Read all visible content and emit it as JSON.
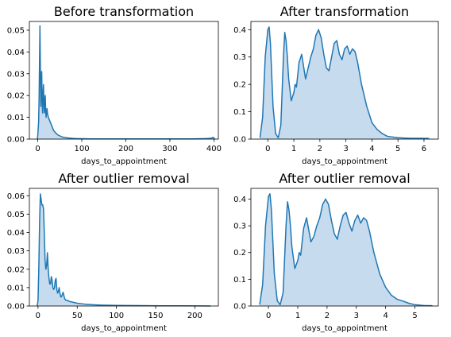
{
  "figure": {
    "line_color": "#1f77b4",
    "fill_color": "#c6dbee"
  },
  "chart_data": [
    {
      "type": "area",
      "title": "Before transformation",
      "xlabel": "days_to_appointment",
      "ylabel": "",
      "xlim": [
        -19,
        410
      ],
      "ylim": [
        0,
        0.054
      ],
      "xticks": [
        0,
        100,
        200,
        300,
        400
      ],
      "xtick_labels": [
        "0",
        "100",
        "200",
        "300",
        "400"
      ],
      "yticks": [
        0,
        0.01,
        0.02,
        0.03,
        0.04,
        0.05
      ],
      "ytick_labels": [
        "0.00",
        "0.01",
        "0.02",
        "0.03",
        "0.04",
        "0.05"
      ],
      "grid": false,
      "series": [
        {
          "x": [
            -1,
            0,
            2,
            3,
            4,
            5,
            6,
            7,
            8,
            9,
            10,
            11,
            12,
            13,
            14,
            15,
            16,
            17,
            18,
            19,
            20,
            21,
            22,
            23,
            24,
            26,
            28,
            30,
            33,
            36,
            40,
            45,
            50,
            55,
            60,
            70,
            80,
            90,
            100,
            120,
            150,
            200,
            250,
            300,
            350,
            380,
            395,
            398,
            400,
            402
          ],
          "y": [
            0,
            0.0015,
            0.008,
            0.018,
            0.035,
            0.052,
            0.032,
            0.015,
            0.022,
            0.031,
            0.018,
            0.012,
            0.02,
            0.025,
            0.017,
            0.012,
            0.018,
            0.02,
            0.013,
            0.01,
            0.012,
            0.014,
            0.012,
            0.011,
            0.01,
            0.009,
            0.008,
            0.007,
            0.0055,
            0.004,
            0.003,
            0.002,
            0.0015,
            0.001,
            0.0008,
            0.0005,
            0.0003,
            0.0002,
            0.0002,
            0.0001,
            0.0001,
            0.0001,
            0.0001,
            0.0001,
            0.0001,
            0.0002,
            0.0004,
            0.0008,
            0.0005,
            0.0001
          ]
        }
      ]
    },
    {
      "type": "area",
      "title": "After transformation",
      "xlabel": "days_to_appointment",
      "ylabel": "",
      "xlim": [
        -0.65,
        6.55
      ],
      "ylim": [
        0,
        0.43
      ],
      "xticks": [
        0,
        1,
        2,
        3,
        4,
        5,
        6
      ],
      "xtick_labels": [
        "0",
        "1",
        "2",
        "3",
        "4",
        "5",
        "6"
      ],
      "yticks": [
        0,
        0.1,
        0.2,
        0.3,
        0.4
      ],
      "ytick_labels": [
        "0.0",
        "0.1",
        "0.2",
        "0.3",
        "0.4"
      ],
      "grid": false,
      "series": [
        {
          "x": [
            -0.3,
            -0.2,
            -0.1,
            0,
            0.05,
            0.1,
            0.2,
            0.3,
            0.4,
            0.5,
            0.6,
            0.65,
            0.7,
            0.75,
            0.8,
            0.9,
            1.0,
            1.05,
            1.1,
            1.2,
            1.3,
            1.4,
            1.45,
            1.55,
            1.65,
            1.75,
            1.85,
            1.95,
            2.05,
            2.15,
            2.25,
            2.35,
            2.45,
            2.55,
            2.65,
            2.75,
            2.85,
            2.95,
            3.05,
            3.15,
            3.25,
            3.35,
            3.45,
            3.6,
            3.8,
            4.0,
            4.2,
            4.4,
            4.6,
            5.0,
            5.5,
            6.0,
            6.2
          ],
          "y": [
            0.005,
            0.08,
            0.3,
            0.4,
            0.41,
            0.35,
            0.12,
            0.02,
            0.005,
            0.05,
            0.3,
            0.39,
            0.36,
            0.3,
            0.22,
            0.14,
            0.17,
            0.2,
            0.19,
            0.28,
            0.31,
            0.25,
            0.22,
            0.26,
            0.3,
            0.33,
            0.38,
            0.4,
            0.37,
            0.31,
            0.26,
            0.25,
            0.3,
            0.35,
            0.36,
            0.31,
            0.29,
            0.33,
            0.34,
            0.31,
            0.33,
            0.32,
            0.28,
            0.2,
            0.12,
            0.06,
            0.035,
            0.02,
            0.01,
            0.005,
            0.003,
            0.003,
            0.002
          ]
        }
      ]
    },
    {
      "type": "area",
      "title": "After outlier removal",
      "xlabel": "days_to_appointment",
      "ylabel": "",
      "xlim": [
        -11,
        230
      ],
      "ylim": [
        0,
        0.064
      ],
      "xticks": [
        0,
        50,
        100,
        150,
        200
      ],
      "xtick_labels": [
        "0",
        "50",
        "100",
        "150",
        "200"
      ],
      "yticks": [
        0,
        0.01,
        0.02,
        0.03,
        0.04,
        0.05,
        0.06
      ],
      "ytick_labels": [
        "0.00",
        "0.01",
        "0.02",
        "0.03",
        "0.04",
        "0.05",
        "0.06"
      ],
      "grid": false,
      "series": [
        {
          "x": [
            -1,
            0,
            1,
            2,
            3,
            4,
            5,
            6,
            7,
            8,
            9,
            10,
            11,
            12,
            13,
            14,
            15,
            16,
            17,
            18,
            19,
            20,
            21,
            22,
            23,
            24,
            25,
            26,
            27,
            28,
            29,
            30,
            32,
            34,
            36,
            38,
            40,
            45,
            50,
            60,
            70,
            80,
            100,
            130,
            160,
            190,
            220
          ],
          "y": [
            0,
            0.003,
            0.02,
            0.045,
            0.061,
            0.058,
            0.055,
            0.055,
            0.053,
            0.04,
            0.025,
            0.02,
            0.022,
            0.029,
            0.02,
            0.015,
            0.012,
            0.012,
            0.016,
            0.014,
            0.01,
            0.009,
            0.01,
            0.014,
            0.015,
            0.009,
            0.007,
            0.008,
            0.01,
            0.007,
            0.005,
            0.005,
            0.0075,
            0.004,
            0.003,
            0.003,
            0.0025,
            0.002,
            0.0015,
            0.001,
            0.0007,
            0.0005,
            0.0003,
            0.0002,
            0.0001,
            0.0001,
            0
          ]
        }
      ]
    },
    {
      "type": "area",
      "title": "After outlier removal",
      "xlabel": "days_to_appointment",
      "ylabel": "",
      "xlim": [
        -0.6,
        5.8
      ],
      "ylim": [
        0,
        0.44
      ],
      "xticks": [
        0,
        1,
        2,
        3,
        4,
        5
      ],
      "xtick_labels": [
        "0",
        "1",
        "2",
        "3",
        "4",
        "5"
      ],
      "yticks": [
        0,
        0.1,
        0.2,
        0.3,
        0.4
      ],
      "ytick_labels": [
        "0.0",
        "0.1",
        "0.2",
        "0.3",
        "0.4"
      ],
      "grid": false,
      "series": [
        {
          "x": [
            -0.3,
            -0.2,
            -0.1,
            0,
            0.05,
            0.1,
            0.2,
            0.3,
            0.4,
            0.5,
            0.6,
            0.65,
            0.7,
            0.75,
            0.8,
            0.9,
            1.0,
            1.05,
            1.1,
            1.2,
            1.3,
            1.35,
            1.45,
            1.55,
            1.65,
            1.75,
            1.85,
            1.95,
            2.05,
            2.15,
            2.25,
            2.35,
            2.45,
            2.55,
            2.65,
            2.75,
            2.85,
            2.95,
            3.05,
            3.15,
            3.25,
            3.35,
            3.45,
            3.6,
            3.8,
            4.0,
            4.2,
            4.4,
            4.6,
            4.8,
            5.0,
            5.3,
            5.6
          ],
          "y": [
            0.005,
            0.08,
            0.3,
            0.41,
            0.42,
            0.36,
            0.12,
            0.02,
            0.005,
            0.05,
            0.3,
            0.39,
            0.36,
            0.3,
            0.22,
            0.14,
            0.17,
            0.2,
            0.19,
            0.29,
            0.33,
            0.3,
            0.24,
            0.26,
            0.3,
            0.33,
            0.38,
            0.4,
            0.38,
            0.32,
            0.27,
            0.25,
            0.3,
            0.34,
            0.35,
            0.31,
            0.28,
            0.32,
            0.34,
            0.31,
            0.33,
            0.32,
            0.28,
            0.2,
            0.12,
            0.07,
            0.04,
            0.025,
            0.018,
            0.01,
            0.005,
            0.002,
            0.001
          ]
        }
      ]
    }
  ]
}
